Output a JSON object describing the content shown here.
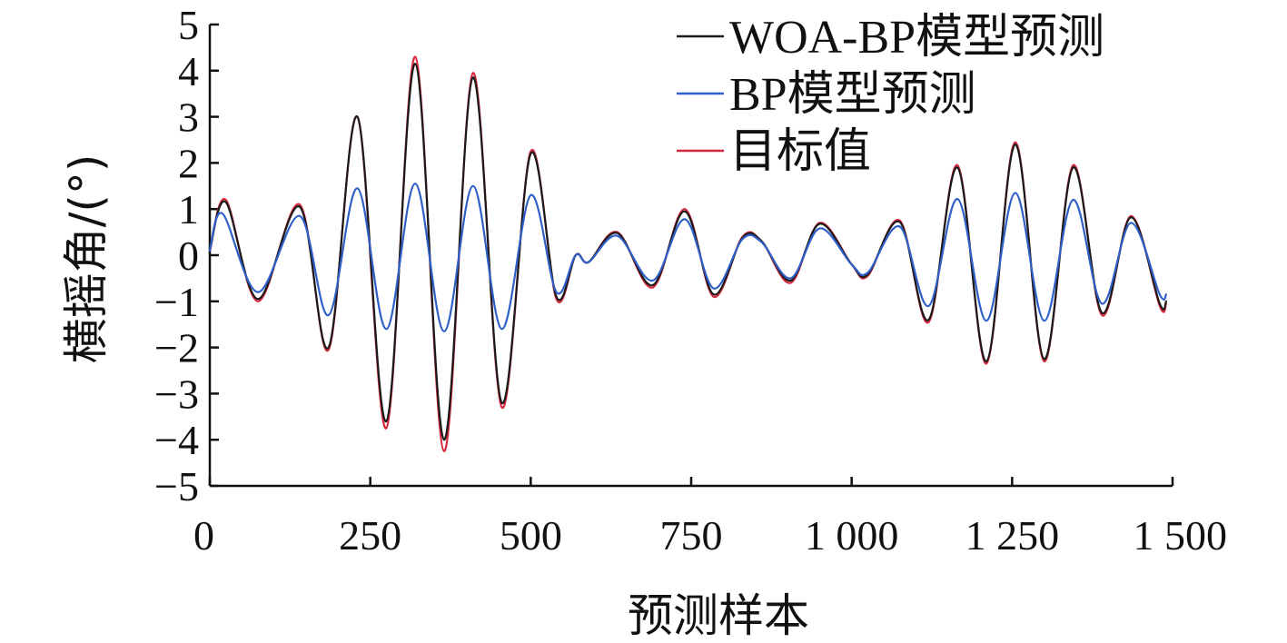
{
  "chart_data": {
    "type": "line",
    "xlabel": "预测样本",
    "ylabel": "横摇角/(°)",
    "xlim": [
      0,
      1500
    ],
    "ylim": [
      -5,
      5
    ],
    "xticks": [
      0,
      250,
      500,
      750,
      1000,
      1250,
      1500
    ],
    "xtick_labels": [
      "0",
      "250",
      "500",
      "750",
      "1 000",
      "1 250",
      "1 500"
    ],
    "yticks": [
      5,
      4,
      3,
      2,
      1,
      0,
      -1,
      -2,
      -3,
      -4,
      -5
    ],
    "ytick_labels": [
      "5",
      "4",
      "3",
      "2",
      "1",
      "0",
      "−1",
      "−2",
      "−3",
      "−4",
      "−5"
    ],
    "grid": false,
    "legend_position": "top-right",
    "series": [
      {
        "name": "目标值",
        "color": "#d6283c",
        "points": [
          [
            0,
            0.1
          ],
          [
            25,
            1.2
          ],
          [
            75,
            -1.0
          ],
          [
            140,
            1.1
          ],
          [
            185,
            -2.05
          ],
          [
            230,
            3.0
          ],
          [
            275,
            -3.75
          ],
          [
            320,
            4.3
          ],
          [
            365,
            -4.25
          ],
          [
            410,
            3.95
          ],
          [
            455,
            -3.3
          ],
          [
            500,
            2.25
          ],
          [
            540,
            -0.95
          ],
          [
            570,
            0.0
          ],
          [
            590,
            -0.15
          ],
          [
            635,
            0.5
          ],
          [
            690,
            -0.7
          ],
          [
            740,
            1.0
          ],
          [
            785,
            -0.9
          ],
          [
            830,
            0.4
          ],
          [
            860,
            0.3
          ],
          [
            905,
            -0.6
          ],
          [
            950,
            0.7
          ],
          [
            1000,
            -0.2
          ],
          [
            1025,
            -0.45
          ],
          [
            1075,
            0.75
          ],
          [
            1120,
            -1.45
          ],
          [
            1165,
            1.95
          ],
          [
            1210,
            -2.35
          ],
          [
            1255,
            2.45
          ],
          [
            1300,
            -2.3
          ],
          [
            1345,
            1.95
          ],
          [
            1390,
            -1.3
          ],
          [
            1435,
            0.85
          ],
          [
            1480,
            -1.1
          ],
          [
            1490,
            -1.05
          ]
        ]
      },
      {
        "name": "WOA-BP模型预测",
        "color": "#1a1a1a",
        "points": [
          [
            0,
            0.1
          ],
          [
            25,
            1.15
          ],
          [
            75,
            -0.95
          ],
          [
            140,
            1.05
          ],
          [
            185,
            -2.0
          ],
          [
            230,
            3.0
          ],
          [
            275,
            -3.6
          ],
          [
            320,
            4.15
          ],
          [
            365,
            -4.0
          ],
          [
            410,
            3.85
          ],
          [
            455,
            -3.2
          ],
          [
            500,
            2.2
          ],
          [
            540,
            -0.9
          ],
          [
            570,
            0.0
          ],
          [
            590,
            -0.15
          ],
          [
            635,
            0.48
          ],
          [
            690,
            -0.65
          ],
          [
            740,
            0.95
          ],
          [
            785,
            -0.85
          ],
          [
            830,
            0.38
          ],
          [
            860,
            0.3
          ],
          [
            905,
            -0.55
          ],
          [
            950,
            0.68
          ],
          [
            1000,
            -0.2
          ],
          [
            1025,
            -0.42
          ],
          [
            1075,
            0.72
          ],
          [
            1120,
            -1.4
          ],
          [
            1165,
            1.9
          ],
          [
            1210,
            -2.3
          ],
          [
            1255,
            2.4
          ],
          [
            1300,
            -2.25
          ],
          [
            1345,
            1.9
          ],
          [
            1390,
            -1.25
          ],
          [
            1435,
            0.82
          ],
          [
            1480,
            -1.05
          ],
          [
            1490,
            -1.0
          ]
        ]
      },
      {
        "name": "BP模型预测",
        "color": "#2f5fc8",
        "points": [
          [
            0,
            0.1
          ],
          [
            20,
            0.9
          ],
          [
            75,
            -0.8
          ],
          [
            140,
            0.85
          ],
          [
            185,
            -1.3
          ],
          [
            230,
            1.45
          ],
          [
            275,
            -1.6
          ],
          [
            320,
            1.55
          ],
          [
            365,
            -1.65
          ],
          [
            410,
            1.5
          ],
          [
            455,
            -1.6
          ],
          [
            500,
            1.3
          ],
          [
            540,
            -0.8
          ],
          [
            570,
            0.0
          ],
          [
            590,
            -0.15
          ],
          [
            635,
            0.42
          ],
          [
            690,
            -0.55
          ],
          [
            740,
            0.78
          ],
          [
            785,
            -0.72
          ],
          [
            830,
            0.35
          ],
          [
            860,
            0.28
          ],
          [
            905,
            -0.5
          ],
          [
            950,
            0.58
          ],
          [
            1000,
            -0.2
          ],
          [
            1025,
            -0.38
          ],
          [
            1075,
            0.62
          ],
          [
            1120,
            -1.1
          ],
          [
            1165,
            1.22
          ],
          [
            1210,
            -1.42
          ],
          [
            1255,
            1.35
          ],
          [
            1300,
            -1.42
          ],
          [
            1345,
            1.2
          ],
          [
            1390,
            -1.05
          ],
          [
            1435,
            0.7
          ],
          [
            1480,
            -0.85
          ],
          [
            1490,
            -0.85
          ]
        ]
      }
    ],
    "legend_order": [
      "WOA-BP模型预测",
      "BP模型预测",
      "目标值"
    ]
  }
}
